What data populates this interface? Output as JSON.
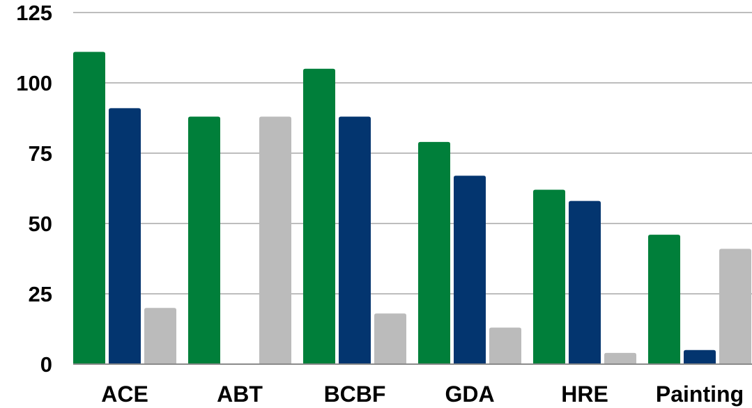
{
  "chart_data": {
    "type": "bar",
    "categories": [
      "ACE",
      "ABT",
      "BCBF",
      "GDA",
      "HRE",
      "Painting"
    ],
    "series": [
      {
        "values": [
          111,
          88,
          105,
          79,
          62,
          46
        ],
        "color": "#007f3a"
      },
      {
        "values": [
          91,
          0,
          88,
          67,
          58,
          5
        ],
        "color": "#03356f"
      },
      {
        "values": [
          20,
          88,
          18,
          13,
          4,
          41
        ],
        "color": "#bbbbbb"
      }
    ],
    "y_ticks": [
      0,
      25,
      50,
      75,
      100,
      125
    ],
    "ylim": [
      0,
      125
    ],
    "grid": true,
    "legend": "none"
  }
}
